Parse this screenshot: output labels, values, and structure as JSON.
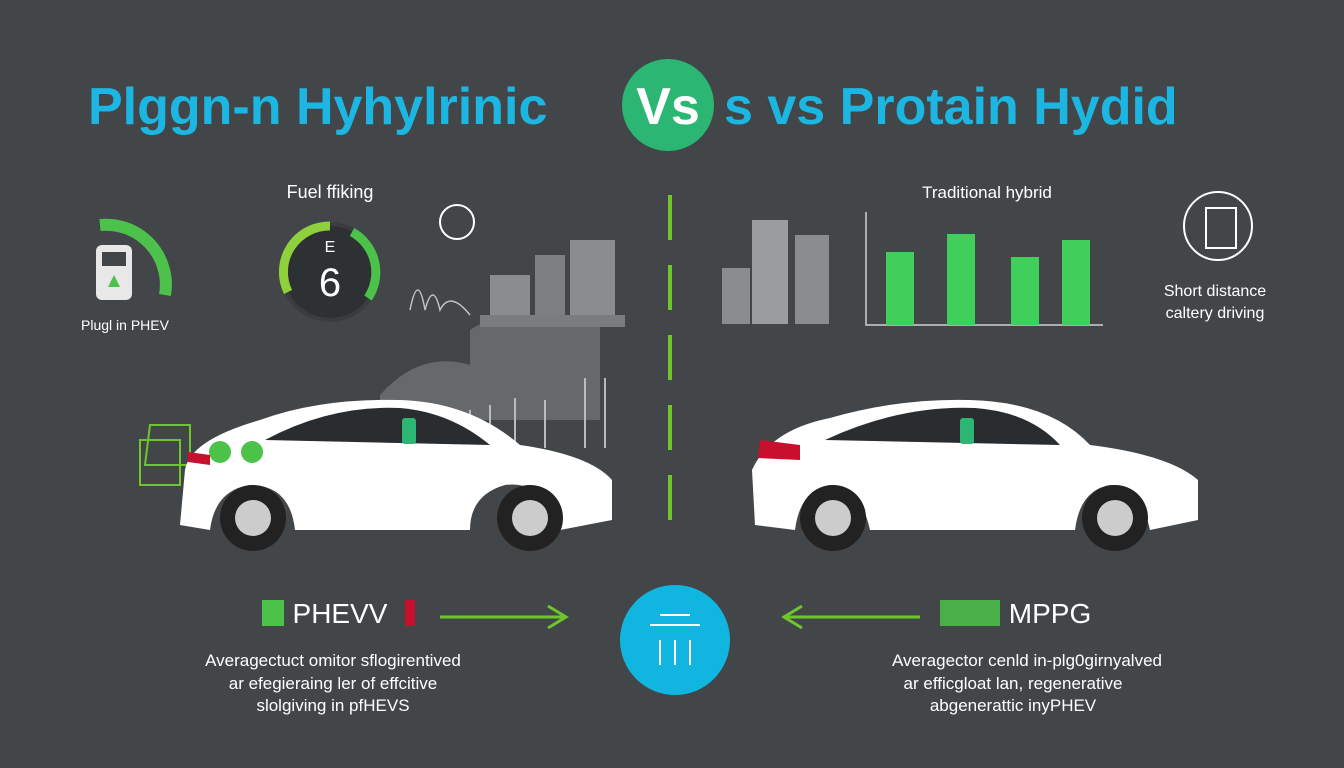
{
  "header": {
    "title_left": "Plggn-n Hyhylrinic",
    "badge": "Vs",
    "title_right": "s vs Protain Hydid"
  },
  "left_panel": {
    "gauge_label": "Fuel ffiking",
    "gauge_letter": "E",
    "gauge_number": "6",
    "icon_label": "Plugl in PHEV"
  },
  "right_panel": {
    "chart_label": "Traditional hybrid",
    "icon_label_lines": [
      "Short distance",
      "caltery driving"
    ]
  },
  "bottom": {
    "left_tag": "PHEVV",
    "right_tag": "MPPG",
    "left_text": [
      "Averagectuct omitor sflogirentived",
      "ar efegieraing ler of effcitive",
      "slolgiving in pfHEVS"
    ],
    "right_text": [
      "Averagector cenld in-plg0girnyalved",
      "ar efficgloat lan, regenerative",
      "abgenerattic inyPHEV"
    ]
  }
}
